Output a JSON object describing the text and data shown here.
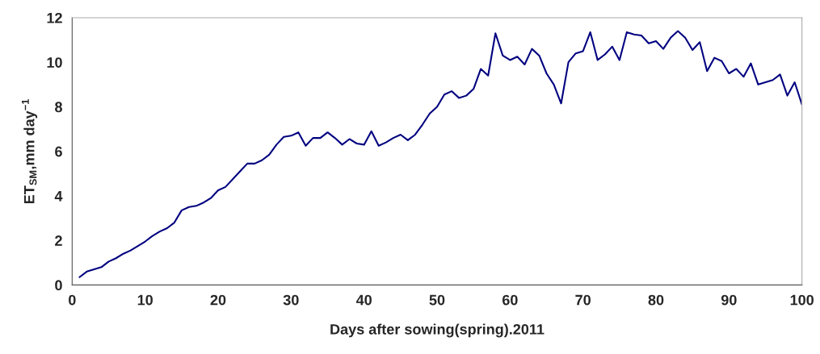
{
  "chart_data": {
    "type": "line",
    "xlabel": "Days after sowing(spring).2011",
    "ylabel": "ET$_{SM}$,mm day$^{−1}$",
    "x": [
      1,
      2,
      3,
      4,
      5,
      6,
      7,
      8,
      9,
      10,
      11,
      12,
      13,
      14,
      15,
      16,
      17,
      18,
      19,
      20,
      21,
      22,
      23,
      24,
      25,
      26,
      27,
      28,
      29,
      30,
      31,
      32,
      33,
      34,
      35,
      36,
      37,
      38,
      39,
      40,
      41,
      42,
      43,
      44,
      45,
      46,
      47,
      48,
      49,
      50,
      51,
      52,
      53,
      54,
      55,
      56,
      57,
      58,
      59,
      60,
      61,
      62,
      63,
      64,
      65,
      66,
      67,
      68,
      69,
      70,
      71,
      72,
      73,
      74,
      75,
      76,
      77,
      78,
      79,
      80,
      81,
      82,
      83,
      84,
      85,
      86,
      87,
      88,
      89,
      90,
      91,
      92,
      93,
      94,
      95,
      96,
      97,
      98,
      99,
      100
    ],
    "series": [
      {
        "color": "#000080",
        "values": [
          0.35,
          0.6,
          0.7,
          0.8,
          1.05,
          1.2,
          1.4,
          1.55,
          1.75,
          1.95,
          2.2,
          2.4,
          2.55,
          2.8,
          3.35,
          3.5,
          3.55,
          3.7,
          3.9,
          4.25,
          4.4,
          4.75,
          5.1,
          5.45,
          5.45,
          5.6,
          5.85,
          6.3,
          6.65,
          6.7,
          6.85,
          6.25,
          6.6,
          6.6,
          6.85,
          6.6,
          6.3,
          6.55,
          6.35,
          6.3,
          6.9,
          6.25,
          6.4,
          6.6,
          6.75,
          6.5,
          6.75,
          7.2,
          7.7,
          8.0,
          8.55,
          8.7,
          8.4,
          8.5,
          8.8,
          9.7,
          9.4,
          11.3,
          10.3,
          10.1,
          10.25,
          9.9,
          10.6,
          10.3,
          9.5,
          9.0,
          8.15,
          10.0,
          10.4,
          10.5,
          11.35,
          10.1,
          10.35,
          10.7,
          10.1,
          11.35,
          11.25,
          11.2,
          10.85,
          10.95,
          10.6,
          11.1,
          11.4,
          11.1,
          10.55,
          10.9,
          9.6,
          10.2,
          10.05,
          9.5,
          9.7,
          9.35,
          9.95,
          9.0,
          9.1,
          9.2,
          9.45,
          8.5,
          9.1,
          8.1
        ]
      }
    ],
    "xlim": [
      0,
      100
    ],
    "xticks": [
      0,
      10,
      20,
      30,
      40,
      50,
      60,
      70,
      80,
      90,
      100
    ],
    "ylim": [
      0,
      12
    ],
    "yticks": [
      0,
      2,
      4,
      6,
      8,
      10,
      12
    ],
    "grid": false,
    "legend": false
  }
}
